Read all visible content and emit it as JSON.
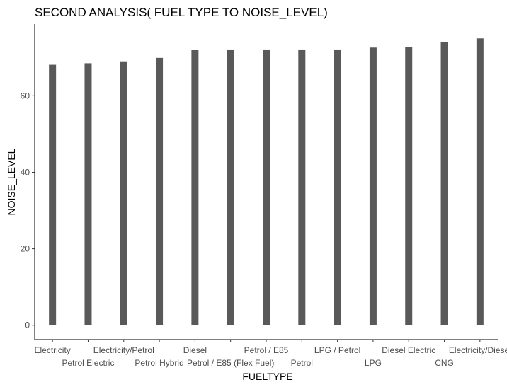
{
  "chart_data": {
    "type": "bar",
    "title": "SECOND ANALYSIS( FUEL TYPE TO NOISE_LEVEL)",
    "xlabel": "FUELTYPE",
    "ylabel": "NOISE_LEVEL",
    "categories": [
      "Electricity",
      "Petrol Electric",
      "Electricity/Petrol",
      "Petrol Hybrid",
      "Diesel",
      "Petrol / E85 (Flex Fuel)",
      "Petrol / E85",
      "Petrol",
      "LPG / Petrol",
      "LPG",
      "Diesel Electric",
      "CNG",
      "Electricity/Diesel"
    ],
    "values": [
      68.1,
      68.5,
      69.0,
      69.9,
      72.0,
      72.1,
      72.1,
      72.1,
      72.1,
      72.6,
      72.7,
      74.0,
      75.0
    ],
    "yticks": [
      0,
      20,
      40,
      60
    ],
    "ylim": [
      -3.75,
      78.75
    ],
    "grid": false,
    "bar_color": "#595959",
    "axis_color": "#000000"
  }
}
